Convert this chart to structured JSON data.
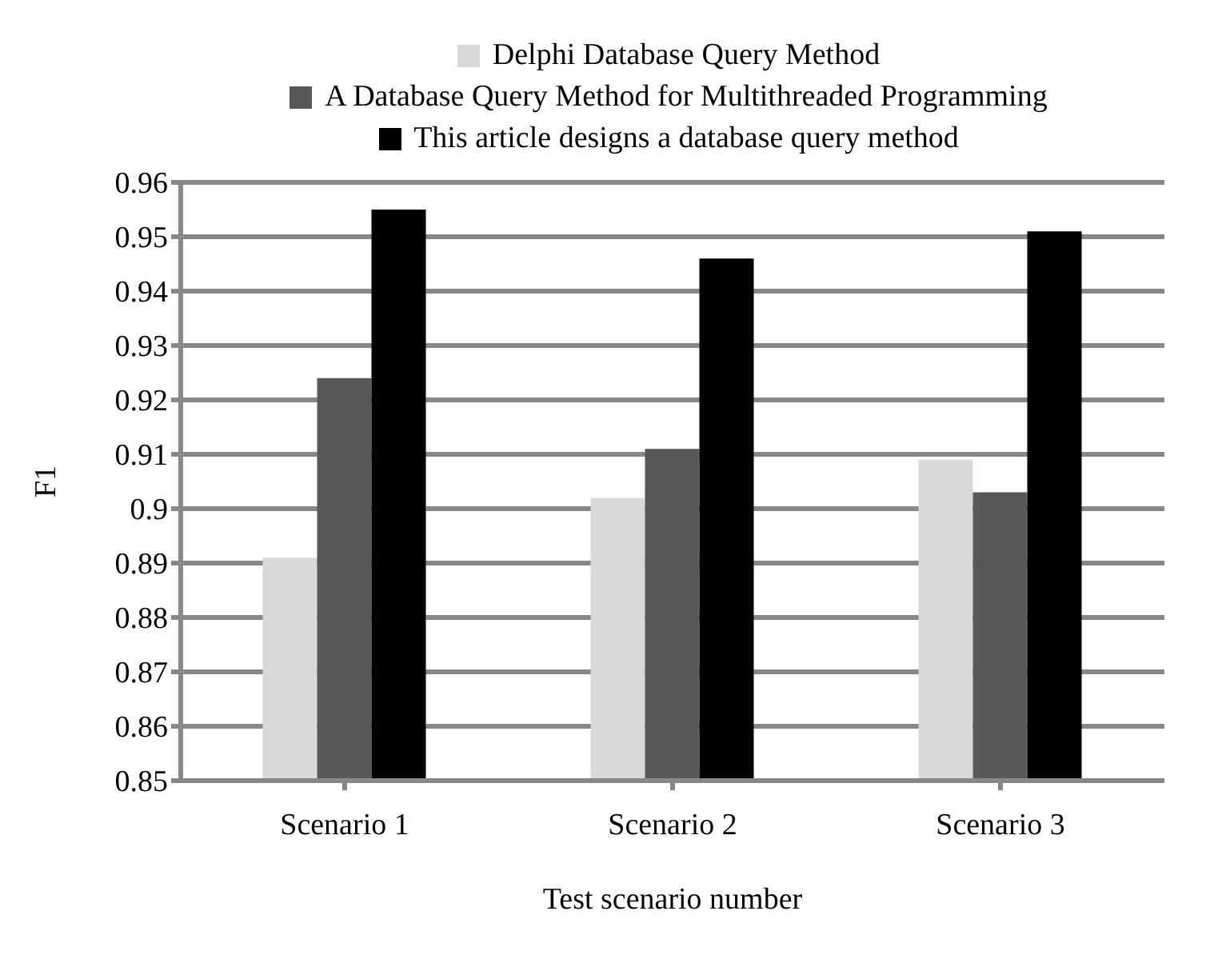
{
  "chart_data": {
    "type": "bar",
    "xlabel": "Test scenario number",
    "ylabel": "F1",
    "categories": [
      "Scenario 1",
      "Scenario 2",
      "Scenario 3"
    ],
    "series": [
      {
        "name": "Delphi Database Query Method",
        "color": "#d9d9d9",
        "values": [
          0.891,
          0.902,
          0.909
        ]
      },
      {
        "name": "A Database Query Method for Multithreaded Programming",
        "color": "#595959",
        "values": [
          0.924,
          0.911,
          0.903
        ]
      },
      {
        "name": "This article designs a database query method",
        "color": "#000000",
        "values": [
          0.955,
          0.946,
          0.951
        ]
      }
    ],
    "ylim": [
      0.85,
      0.96
    ],
    "yticks": [
      0.85,
      0.86,
      0.87,
      0.88,
      0.89,
      {
        "value": 0.9,
        "label": "0.9"
      },
      0.91,
      0.92,
      0.93,
      0.94,
      0.95,
      0.96
    ],
    "grid": "y",
    "legend": "top"
  }
}
